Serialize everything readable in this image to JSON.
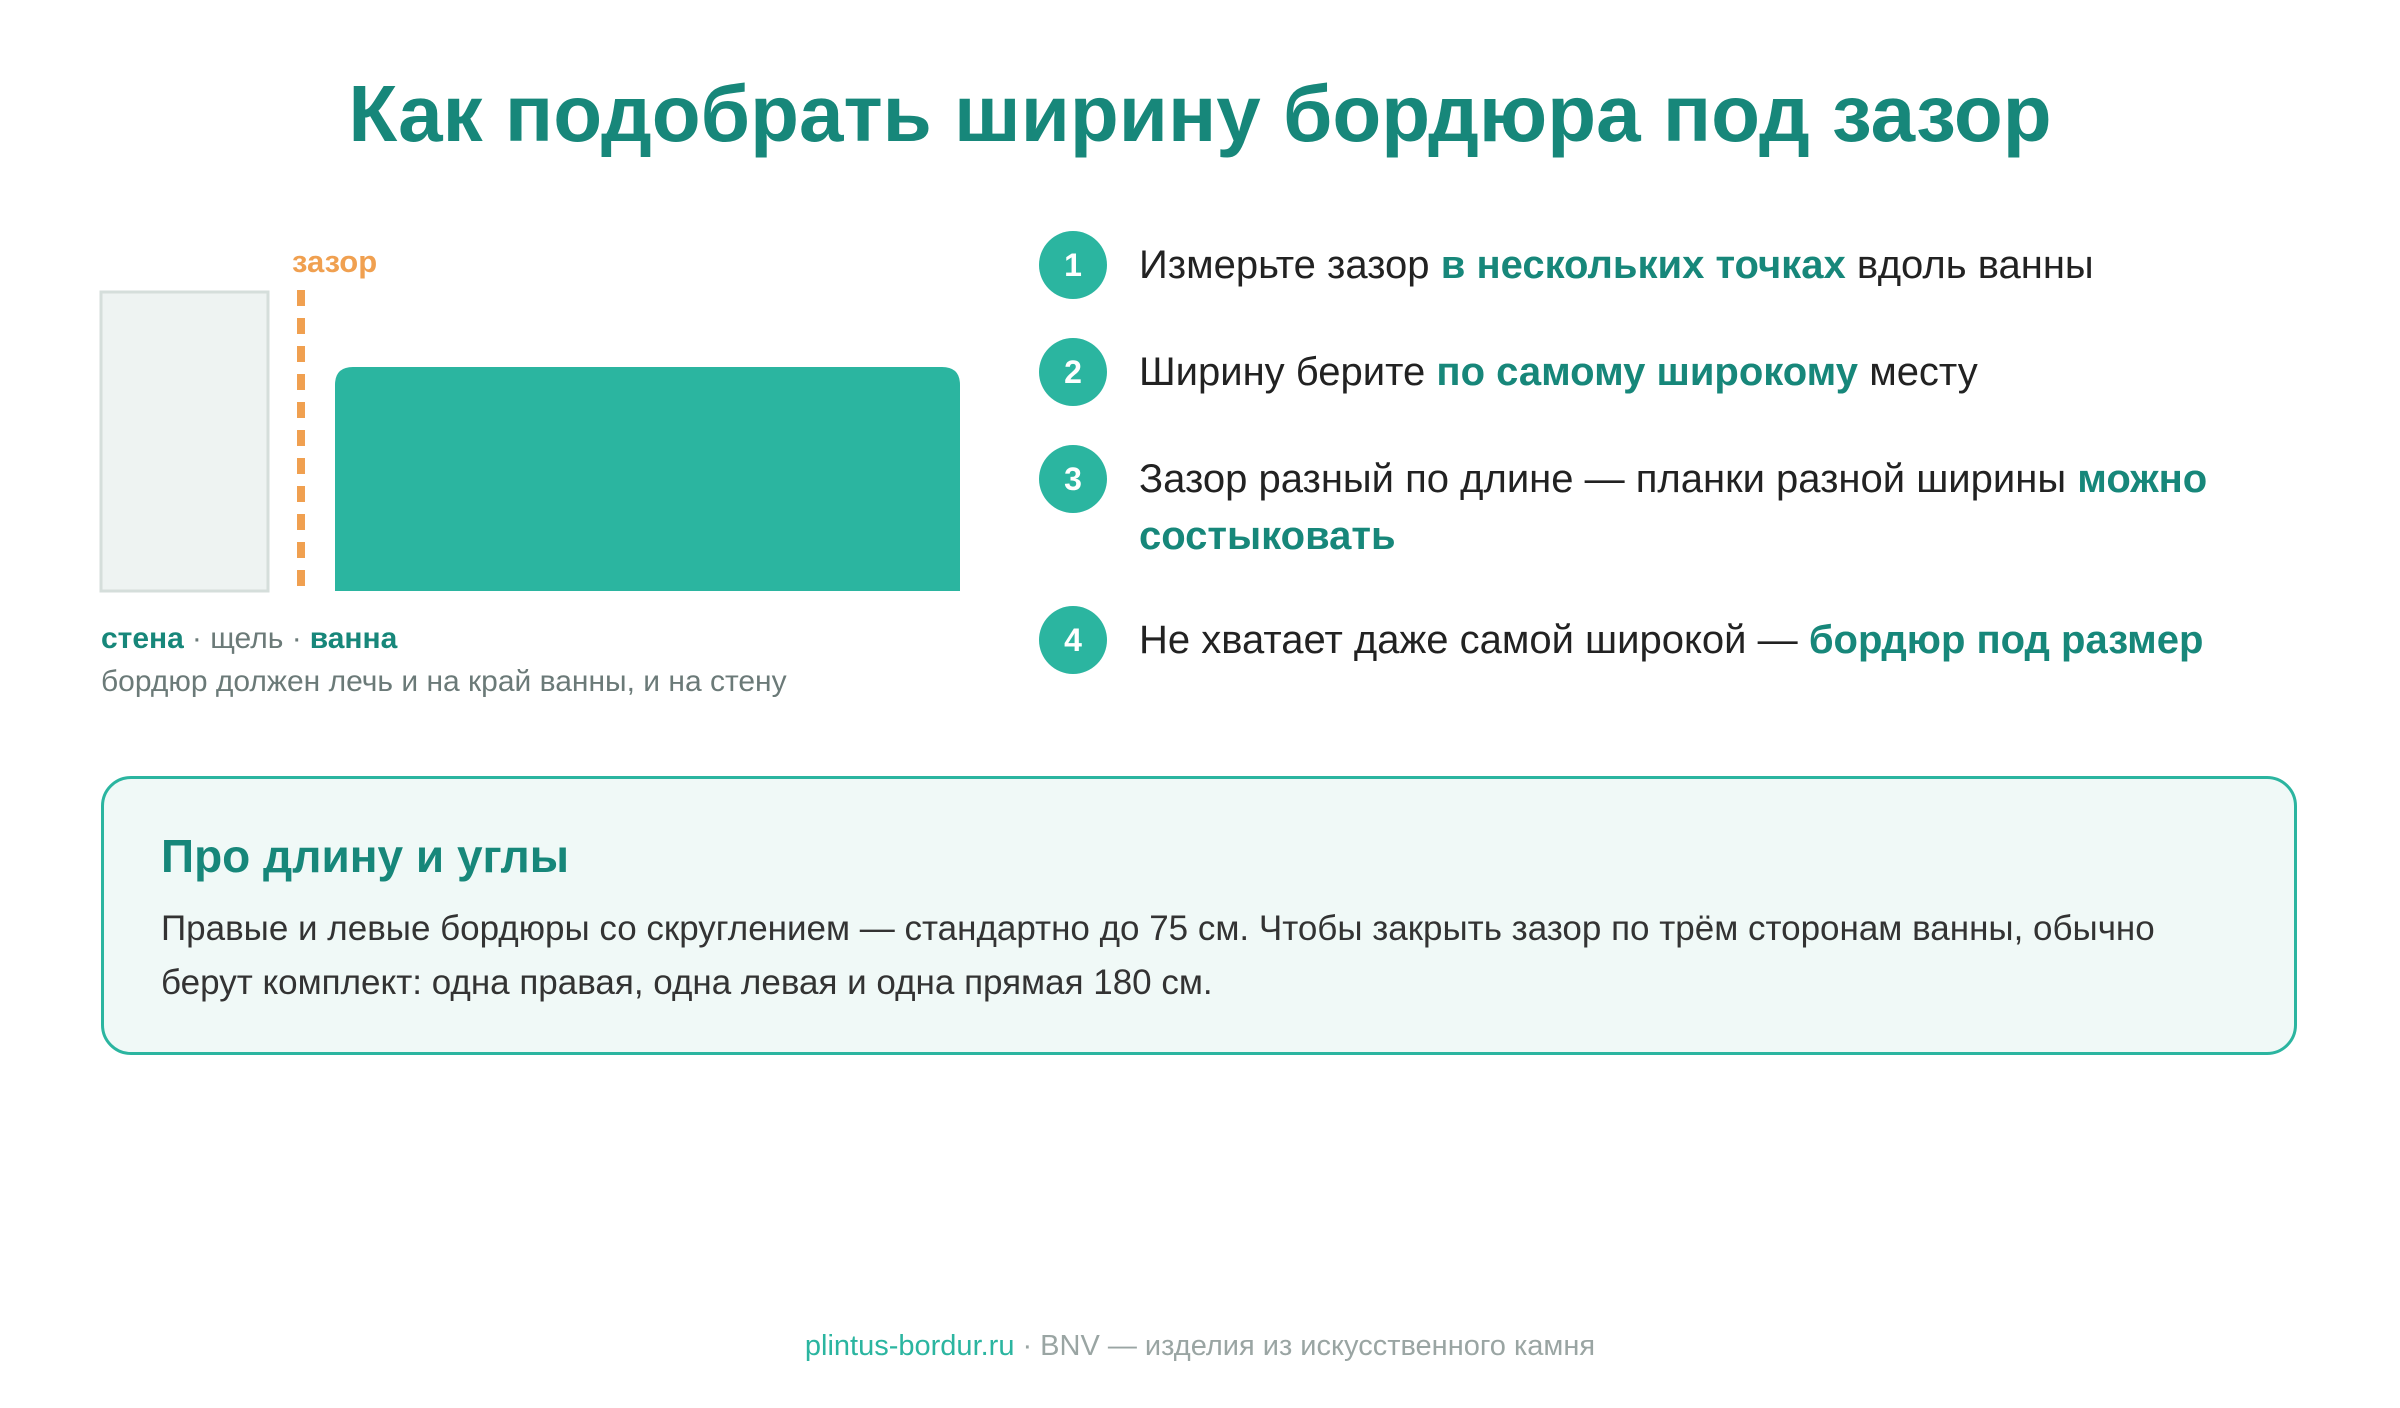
{
  "header": {
    "title": "Как подобрать ширину бордюра под зазор"
  },
  "diagram": {
    "gap_label": "зазор",
    "labels": [
      "стена",
      "· щель ·",
      "ванна"
    ],
    "caption": "бордюр должен лечь и на край ванны, и на стену"
  },
  "steps": [
    {
      "number": "1",
      "before": "Измерьте зазор",
      "emph": "в нескольких точках",
      "after": "вдоль ванны"
    },
    {
      "number": "2",
      "before": "Ширину берите",
      "emph": "по самому широкому",
      "after": "месту"
    },
    {
      "number": "3",
      "before": "Зазор разный по длине — планки разной ширины",
      "emph": "можно состыковать"
    },
    {
      "number": "4",
      "before": "Не хватает даже самой широкой —",
      "emph": "бордюр под размер"
    }
  ],
  "note": {
    "title": "Про длину и углы",
    "text": "Правые и левые бордюры со скруглением — стандартно до 75 см. Чтобы закрыть зазор по трём сторонам ванны, обычно берут комплект: одна правая, одна левая и одна прямая 180 см."
  },
  "footer": {
    "site": "plintus-bordur.ru",
    "text": "· BNV — изделия из искусственного камня"
  }
}
